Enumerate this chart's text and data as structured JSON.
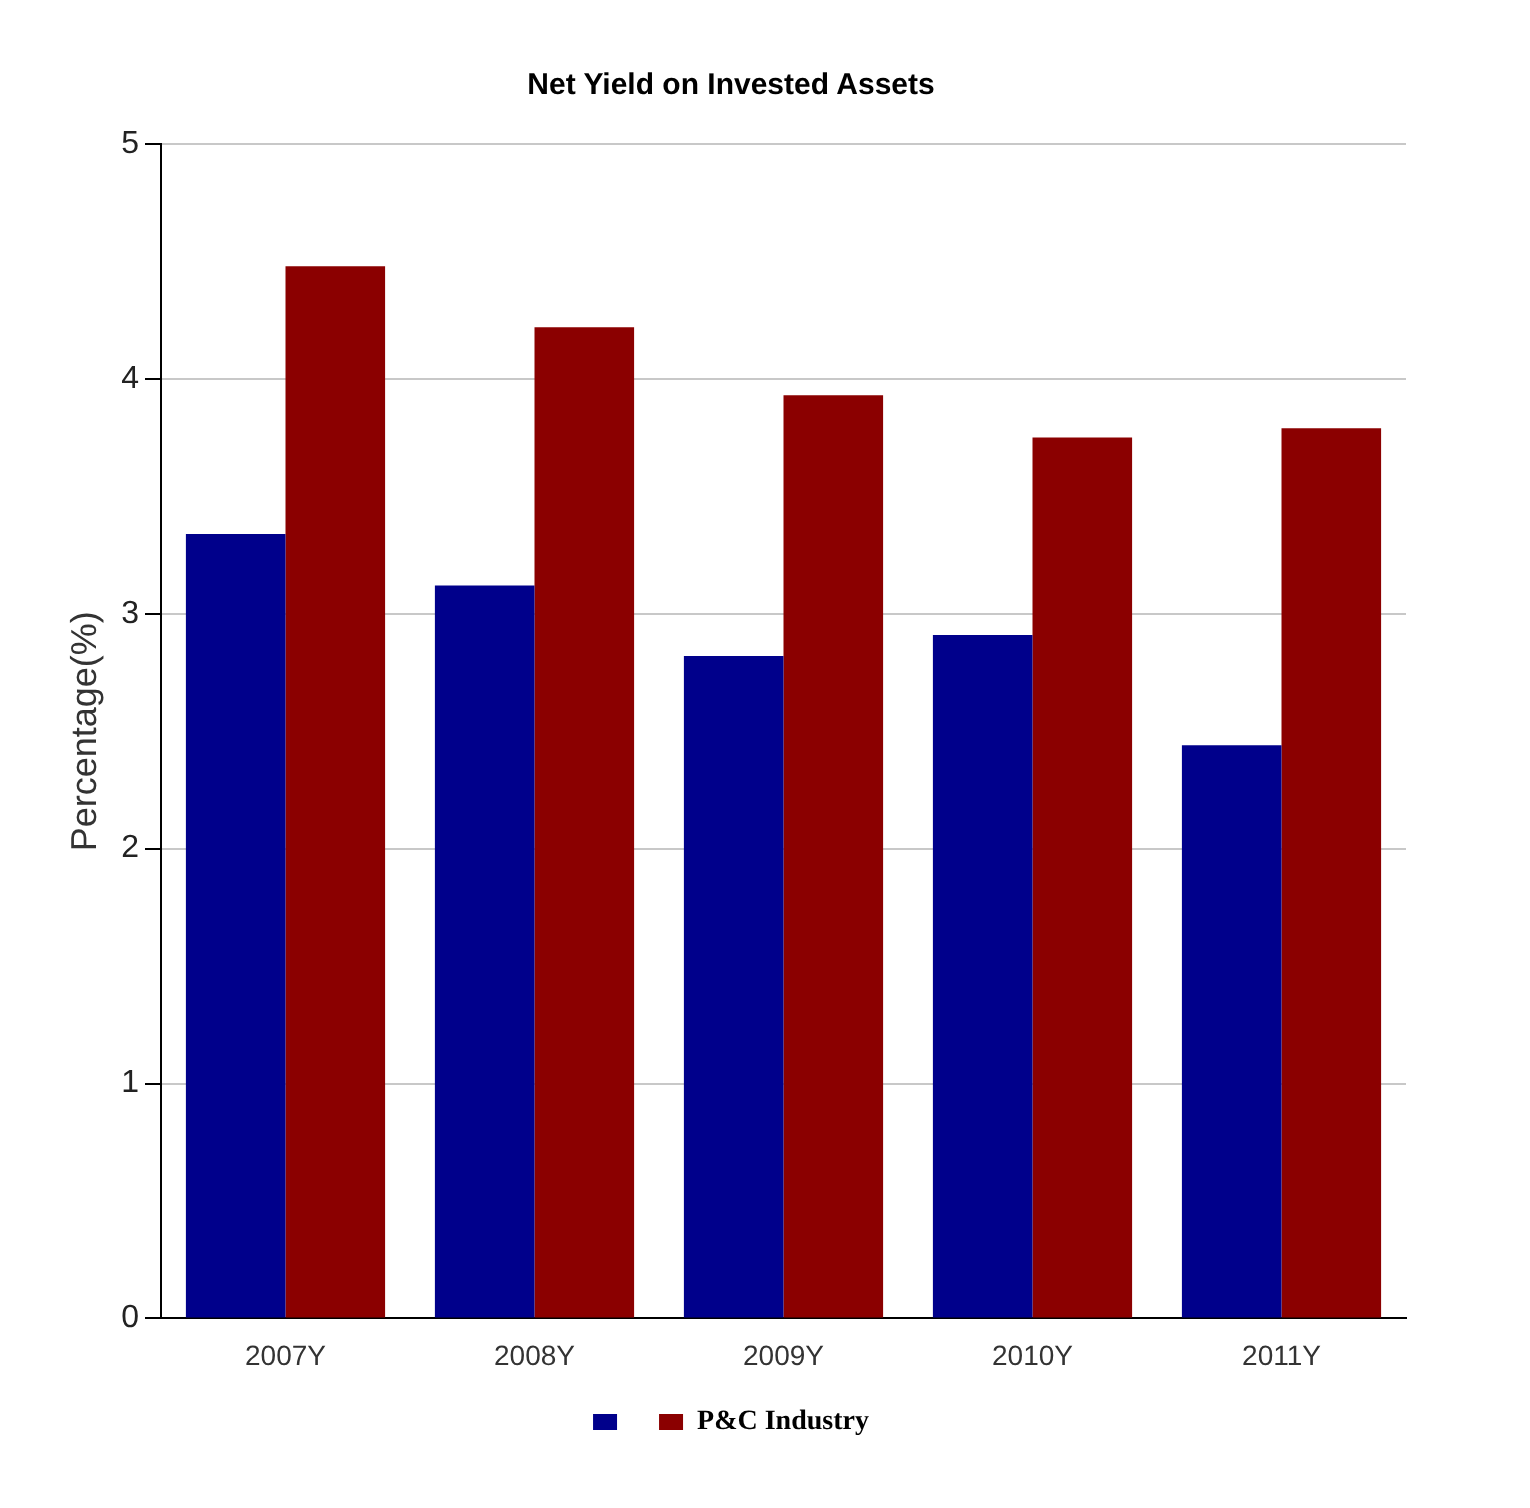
{
  "chart_data": {
    "type": "bar",
    "title": "Net Yield on Invested Assets",
    "ylabel": "Percentage(%)",
    "categories": [
      "2007Y",
      "2008Y",
      "2009Y",
      "2010Y",
      "2011Y"
    ],
    "series": [
      {
        "color": "#00008b",
        "values": [
          3.34,
          3.12,
          2.82,
          2.91,
          2.44
        ]
      },
      {
        "name": "P&C Industry",
        "color": "#8b0000",
        "values": [
          4.48,
          4.22,
          3.93,
          3.75,
          3.79
        ]
      }
    ],
    "ylim": [
      0,
      5
    ],
    "yticks": [
      0,
      1,
      2,
      3,
      4,
      5
    ],
    "grid": "y",
    "legend": "bottom"
  }
}
